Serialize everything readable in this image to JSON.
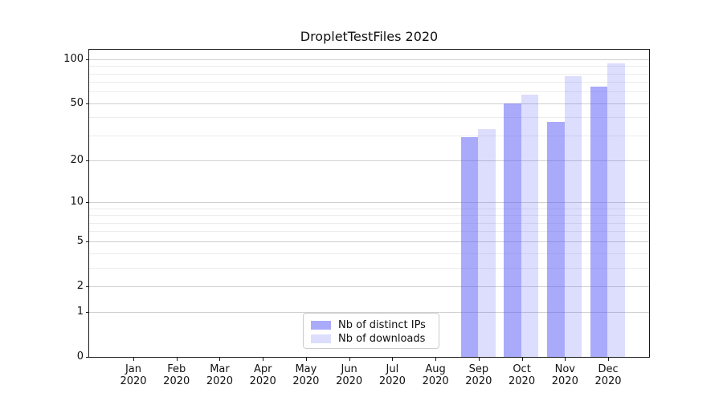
{
  "chart_data": {
    "type": "bar",
    "title": "DropletTestFiles 2020",
    "categories": [
      "Jan",
      "Feb",
      "Mar",
      "Apr",
      "May",
      "Jun",
      "Jul",
      "Aug",
      "Sep",
      "Oct",
      "Nov",
      "Dec"
    ],
    "year_label": "2020",
    "series": [
      {
        "name": "Nb of distinct IPs",
        "color": "rgba(85,85,245,0.5)",
        "values": [
          0,
          0,
          0,
          0,
          0,
          0,
          0,
          0,
          29,
          50,
          37,
          65
        ]
      },
      {
        "name": "Nb of downloads",
        "color": "rgba(85,85,245,0.2)",
        "values": [
          0,
          0,
          0,
          0,
          0,
          0,
          0,
          0,
          33,
          57,
          77,
          94
        ]
      }
    ],
    "yticks": [
      0,
      1,
      2,
      5,
      10,
      20,
      50,
      100
    ],
    "minor_yticks": [
      3,
      4,
      6,
      7,
      8,
      9,
      30,
      40,
      60,
      70,
      80,
      90
    ],
    "scale": "log1p",
    "ylim": [
      0,
      115
    ],
    "grid": true,
    "legend_position": "lower center",
    "colors": {
      "grid_major": "#d0d0d0",
      "grid_minor": "#ececec",
      "spine": "#1a1a1a",
      "text": "#111111",
      "legend_border": "#cccccc"
    }
  }
}
